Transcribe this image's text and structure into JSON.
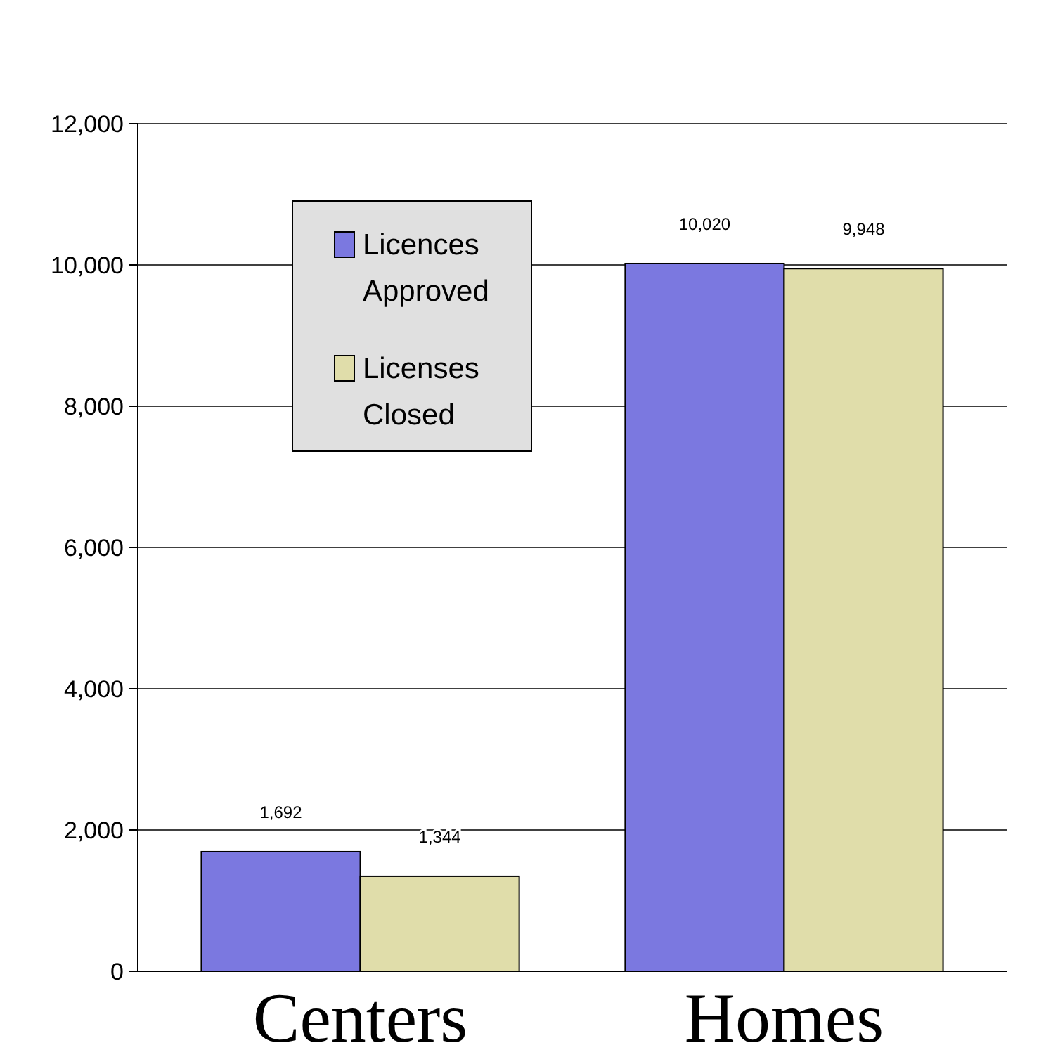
{
  "chart_data": {
    "type": "bar",
    "categories": [
      "Centers",
      "Homes"
    ],
    "series": [
      {
        "name": "Licences Approved",
        "color": "#7b78e0",
        "values": [
          1692,
          10020
        ],
        "value_labels": [
          "1,692",
          "10,020"
        ]
      },
      {
        "name": "Licenses Closed",
        "color": "#e0ddaa",
        "values": [
          1344,
          9948
        ],
        "value_labels": [
          "1,344",
          "9,948"
        ]
      }
    ],
    "ylim": [
      0,
      12000
    ],
    "yticks": [
      {
        "value": 0,
        "label": "0"
      },
      {
        "value": 2000,
        "label": "2,000"
      },
      {
        "value": 4000,
        "label": "4,000"
      },
      {
        "value": 6000,
        "label": "6,000"
      },
      {
        "value": 8000,
        "label": "8,000"
      },
      {
        "value": 10000,
        "label": "10,000"
      },
      {
        "value": 12000,
        "label": "12,000"
      }
    ],
    "grid": "y",
    "legend": "top left"
  }
}
